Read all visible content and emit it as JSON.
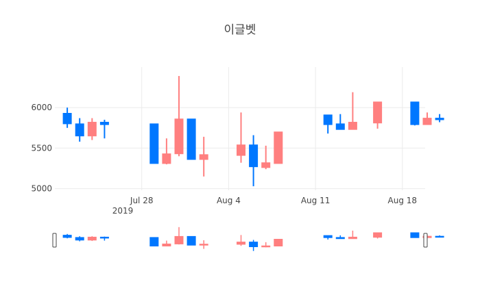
{
  "chart_data": {
    "type": "candlestick",
    "title": "이글벳",
    "x_tick_labels": [
      "Jul 28",
      "Aug 4",
      "Aug 11",
      "Aug 18"
    ],
    "x_tick_sublabel": "2019",
    "y_tick_labels": [
      "5000",
      "5500",
      "6000"
    ],
    "ylim": [
      4980,
      6500
    ],
    "grid": true,
    "range_slider": true,
    "colors": {
      "increasing": "#ff7f7f",
      "decreasing": "#0077ff",
      "grid": "#ebebeb"
    },
    "candles": [
      {
        "date": "2019-07-22",
        "open": 5930,
        "high": 6000,
        "low": 5750,
        "close": 5800
      },
      {
        "date": "2019-07-23",
        "open": 5800,
        "high": 5870,
        "low": 5580,
        "close": 5650
      },
      {
        "date": "2019-07-24",
        "open": 5650,
        "high": 5870,
        "low": 5600,
        "close": 5820
      },
      {
        "date": "2019-07-25",
        "open": 5820,
        "high": 5850,
        "low": 5620,
        "close": 5790
      },
      {
        "date": "2019-07-29",
        "open": 5800,
        "high": 5800,
        "low": 5310,
        "close": 5310
      },
      {
        "date": "2019-07-30",
        "open": 5310,
        "high": 5620,
        "low": 5300,
        "close": 5430
      },
      {
        "date": "2019-07-31",
        "open": 5430,
        "high": 6390,
        "low": 5400,
        "close": 5860
      },
      {
        "date": "2019-08-01",
        "open": 5860,
        "high": 5860,
        "low": 5360,
        "close": 5360
      },
      {
        "date": "2019-08-02",
        "open": 5360,
        "high": 5640,
        "low": 5150,
        "close": 5420
      },
      {
        "date": "2019-08-05",
        "open": 5410,
        "high": 5940,
        "low": 5320,
        "close": 5540
      },
      {
        "date": "2019-08-06",
        "open": 5540,
        "high": 5660,
        "low": 5030,
        "close": 5270
      },
      {
        "date": "2019-08-07",
        "open": 5260,
        "high": 5530,
        "low": 5240,
        "close": 5320
      },
      {
        "date": "2019-08-08",
        "open": 5310,
        "high": 5700,
        "low": 5310,
        "close": 5700
      },
      {
        "date": "2019-08-12",
        "open": 5910,
        "high": 5910,
        "low": 5680,
        "close": 5790
      },
      {
        "date": "2019-08-13",
        "open": 5800,
        "high": 5920,
        "low": 5730,
        "close": 5730
      },
      {
        "date": "2019-08-14",
        "open": 5730,
        "high": 6190,
        "low": 5730,
        "close": 5820
      },
      {
        "date": "2019-08-16",
        "open": 5810,
        "high": 6070,
        "low": 5740,
        "close": 6070
      },
      {
        "date": "2019-08-19",
        "open": 6070,
        "high": 6070,
        "low": 5780,
        "close": 5790
      },
      {
        "date": "2019-08-20",
        "open": 5790,
        "high": 5940,
        "low": 5790,
        "close": 5870
      },
      {
        "date": "2019-08-21",
        "open": 5870,
        "high": 5920,
        "low": 5820,
        "close": 5850
      }
    ]
  }
}
